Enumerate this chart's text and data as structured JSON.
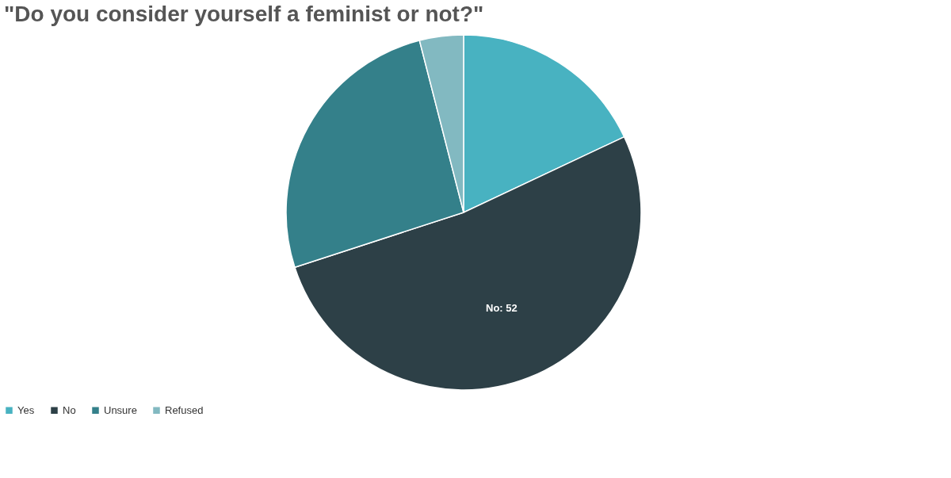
{
  "chart_data": {
    "type": "pie",
    "title": "\"Do you consider yourself a feminist or not?\"",
    "categories": [
      "Yes",
      "No",
      "Unsure",
      "Refused"
    ],
    "values": [
      18,
      52,
      26,
      4
    ],
    "colors": [
      "#48b2c1",
      "#2d4047",
      "#34808a",
      "#82b9c1"
    ],
    "value_labels": [
      null,
      "No: 52",
      null,
      null
    ],
    "legend": "bottom"
  }
}
